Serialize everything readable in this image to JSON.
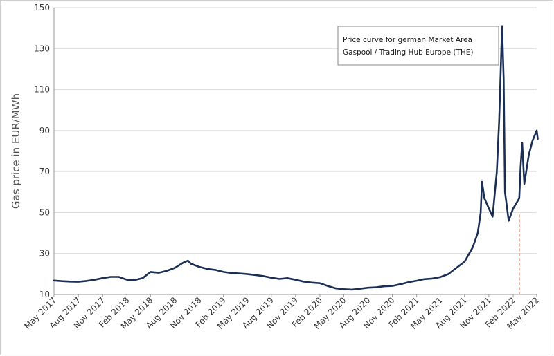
{
  "chart_data": {
    "type": "line",
    "title": "",
    "xlabel": "",
    "ylabel": "Gas price in EUR/MWh",
    "ylim": [
      10,
      150
    ],
    "yticks": [
      10,
      30,
      50,
      70,
      90,
      110,
      130,
      150
    ],
    "xlim": [
      "2017-05",
      "2022-05"
    ],
    "xtick_labels": [
      "May 2017",
      "Aug 2017",
      "Nov 2017",
      "Feb 2018",
      "May 2018",
      "Aug 2018",
      "Nov 2018",
      "Feb 2019",
      "May 2019",
      "Aug 2019",
      "Nov 2019",
      "Feb 2020",
      "May 2020",
      "Aug 2020",
      "Nov 2020",
      "Feb 2021",
      "May 2021",
      "Aug 2021",
      "Nov 2021",
      "Feb 2022",
      "May 2022"
    ],
    "grid": "horizontal",
    "annotation": [
      "Price curve for german Market Area",
      "Gaspool / Trading Hub Europe (THE)"
    ],
    "marker": {
      "date": "2022-02-24",
      "style": "dashed",
      "color": "#e8735a"
    },
    "series": [
      {
        "color": "#1b2f55",
        "x": [
          "2017-05-01",
          "2017-06-01",
          "2017-07-01",
          "2017-08-01",
          "2017-09-01",
          "2017-10-01",
          "2017-11-01",
          "2017-12-01",
          "2018-01-01",
          "2018-02-01",
          "2018-03-01",
          "2018-04-01",
          "2018-05-01",
          "2018-06-01",
          "2018-07-01",
          "2018-08-01",
          "2018-09-01",
          "2018-09-20",
          "2018-10-01",
          "2018-11-01",
          "2018-12-01",
          "2019-01-01",
          "2019-02-01",
          "2019-03-01",
          "2019-04-01",
          "2019-05-01",
          "2019-06-01",
          "2019-07-01",
          "2019-08-01",
          "2019-09-01",
          "2019-10-01",
          "2019-11-01",
          "2019-12-01",
          "2020-01-01",
          "2020-02-01",
          "2020-03-01",
          "2020-04-01",
          "2020-05-01",
          "2020-06-01",
          "2020-07-01",
          "2020-08-01",
          "2020-09-01",
          "2020-10-01",
          "2020-11-01",
          "2020-12-01",
          "2021-01-01",
          "2021-02-01",
          "2021-03-01",
          "2021-04-01",
          "2021-05-01",
          "2021-06-01",
          "2021-07-01",
          "2021-08-01",
          "2021-09-01",
          "2021-09-20",
          "2021-10-01",
          "2021-10-06",
          "2021-10-15",
          "2021-11-01",
          "2021-11-15",
          "2021-12-01",
          "2021-12-10",
          "2021-12-21",
          "2021-12-27",
          "2022-01-01",
          "2022-01-15",
          "2022-02-01",
          "2022-02-15",
          "2022-02-24",
          "2022-03-01",
          "2022-03-07",
          "2022-03-15",
          "2022-04-01",
          "2022-04-15",
          "2022-05-01",
          "2022-05-05"
        ],
        "y": [
          16.8,
          16.5,
          16.3,
          16.2,
          16.6,
          17.2,
          18.0,
          18.6,
          18.6,
          17.2,
          17.0,
          18.0,
          21.0,
          20.6,
          21.5,
          23.0,
          25.5,
          26.5,
          25.0,
          23.5,
          22.5,
          22.0,
          21.0,
          20.5,
          20.3,
          20.0,
          19.5,
          19.0,
          18.2,
          17.6,
          18.0,
          17.2,
          16.3,
          15.8,
          15.5,
          14.2,
          13.0,
          12.6,
          12.4,
          12.8,
          13.3,
          13.5,
          14.0,
          14.2,
          15.0,
          16.0,
          16.7,
          17.5,
          17.8,
          18.5,
          20.0,
          23.0,
          26.0,
          33.0,
          40.0,
          50.0,
          65.0,
          57.0,
          52.0,
          48.0,
          70.0,
          95.0,
          141.0,
          115.0,
          60.0,
          46.0,
          52.0,
          55.0,
          57.0,
          72.0,
          84.0,
          64.0,
          78.0,
          85.0,
          90.0,
          86.0
        ]
      }
    ]
  }
}
